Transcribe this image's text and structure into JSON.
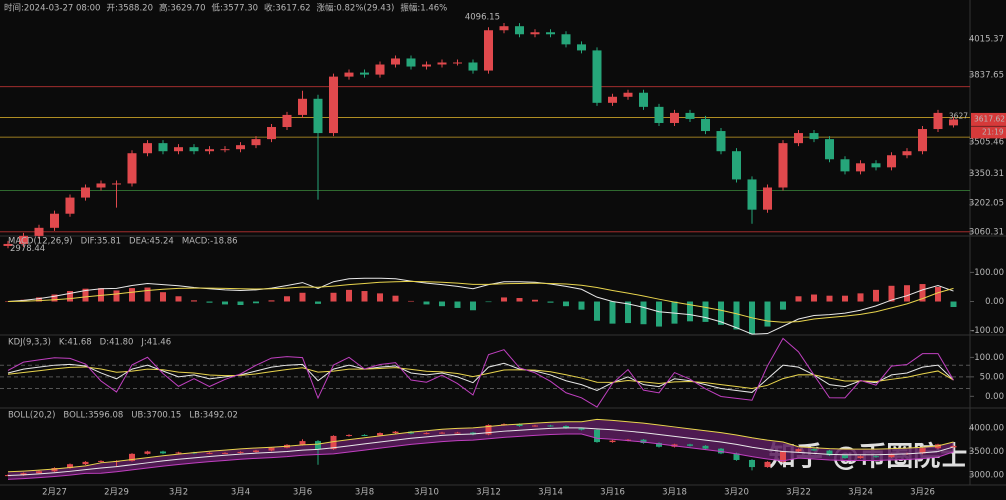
{
  "watermark": "知乎 @币圈院士",
  "chart_data": [
    {
      "type": "candlestick",
      "header": [
        "时间:2024-03-27 08:00",
        "开:3588.20",
        "高:3629.70",
        "低:3577.30",
        "收:3617.62",
        "涨幅:0.82%(29.43)",
        "振幅:1.46%"
      ],
      "categories": [
        null,
        null,
        null,
        "2月27",
        null,
        null,
        null,
        "2月29",
        null,
        null,
        null,
        "3月2",
        null,
        null,
        null,
        "3月4",
        null,
        null,
        null,
        "3月6",
        null,
        null,
        null,
        "3月8",
        null,
        null,
        null,
        "3月10",
        null,
        null,
        null,
        "3月12",
        null,
        null,
        null,
        "3月14",
        null,
        null,
        null,
        "3月16",
        null,
        null,
        null,
        "3月18",
        null,
        null,
        null,
        "3月20",
        null,
        null,
        null,
        "3月22",
        null,
        null,
        null,
        "3月24",
        null,
        null,
        null,
        "3月26",
        null,
        null
      ],
      "open": [
        2990,
        3000,
        3040,
        3080,
        3150,
        3230,
        3280,
        3300,
        3300,
        3450,
        3500,
        3460,
        3480,
        3460,
        3470,
        3470,
        3490,
        3520,
        3580,
        3640,
        3720,
        3550,
        3830,
        3850,
        3840,
        3890,
        3920,
        3880,
        3890,
        3900,
        3900,
        3860,
        4060,
        4080,
        4040,
        4050,
        4040,
        3990,
        3960,
        3700,
        3730,
        3750,
        3680,
        3600,
        3650,
        3620,
        3560,
        3460,
        3320,
        3170,
        3280,
        3500,
        3550,
        3520,
        3420,
        3360,
        3400,
        3380,
        3440,
        3460,
        3570,
        3588.2
      ],
      "high": [
        3015,
        3055,
        3095,
        3165,
        3245,
        3295,
        3315,
        3315,
        3465,
        3515,
        3515,
        3495,
        3495,
        3485,
        3485,
        3505,
        3535,
        3595,
        3655,
        3760,
        3740,
        3845,
        3865,
        3865,
        3905,
        3935,
        3935,
        3905,
        3915,
        3915,
        3915,
        4075,
        4096.15,
        4095,
        4065,
        4065,
        4055,
        4005,
        3975,
        3745,
        3765,
        3765,
        3695,
        3665,
        3665,
        3635,
        3575,
        3475,
        3335,
        3295,
        3515,
        3565,
        3565,
        3535,
        3435,
        3415,
        3415,
        3455,
        3475,
        3585,
        3665,
        3629.7
      ],
      "low": [
        2978.44,
        2985,
        3025,
        3065,
        3135,
        3215,
        3265,
        3180,
        3285,
        3435,
        3445,
        3445,
        3445,
        3445,
        3455,
        3455,
        3475,
        3505,
        3565,
        3625,
        3220,
        3535,
        3815,
        3825,
        3825,
        3875,
        3865,
        3865,
        3875,
        3885,
        3845,
        3845,
        4045,
        4025,
        4025,
        4025,
        3975,
        3945,
        3685,
        3685,
        3715,
        3665,
        3585,
        3585,
        3605,
        3545,
        3445,
        3305,
        3100,
        3155,
        3265,
        3485,
        3505,
        3405,
        3345,
        3345,
        3365,
        3365,
        3425,
        3445,
        3555,
        3577.3
      ],
      "close": [
        3000,
        3040,
        3080,
        3150,
        3230,
        3280,
        3300,
        3300,
        3450,
        3500,
        3460,
        3480,
        3460,
        3470,
        3470,
        3490,
        3520,
        3580,
        3640,
        3720,
        3550,
        3830,
        3850,
        3840,
        3890,
        3920,
        3880,
        3890,
        3900,
        3900,
        3860,
        4060,
        4080,
        4040,
        4050,
        4040,
        3990,
        3960,
        3700,
        3730,
        3750,
        3680,
        3600,
        3650,
        3620,
        3560,
        3460,
        3320,
        3170,
        3280,
        3500,
        3550,
        3520,
        3420,
        3360,
        3400,
        3380,
        3440,
        3460,
        3570,
        3650,
        3617.62
      ],
      "up_color": "#e0494d",
      "down_color": "#26a67a",
      "ylim": [
        2970,
        4210
      ],
      "yticks": [
        4015.37,
        3837.65,
        3505.46,
        3350.31,
        3202.05,
        3060.31
      ],
      "levels": [
        {
          "value": 3780,
          "color": "#b83232"
        },
        {
          "value": 3627,
          "color": "#c9a227"
        },
        {
          "value": 3530,
          "color": "#c9a227"
        },
        {
          "value": 3265,
          "color": "#3d8a3d"
        },
        {
          "value": 3060.31,
          "color": "#b83232"
        }
      ],
      "countdown": "21:19"
    },
    {
      "type": "macd",
      "legend": [
        {
          "text": "MACD(12,26,9)",
          "color": "#9a9a9a"
        },
        {
          "text": "DIF:35.81",
          "color": "#e8e8e8"
        },
        {
          "text": "DEA:45.24",
          "color": "#e8d44d"
        },
        {
          "text": "MACD:-18.86",
          "color": "#26a67a"
        }
      ],
      "histogram": [
        0,
        6,
        14,
        24,
        36,
        44,
        46,
        38,
        46,
        48,
        32,
        18,
        4,
        -4,
        -10,
        -12,
        -6,
        4,
        18,
        30,
        -8,
        30,
        40,
        36,
        28,
        20,
        2,
        -10,
        -16,
        -22,
        -30,
        -2,
        14,
        12,
        6,
        -4,
        -16,
        -28,
        -66,
        -76,
        -74,
        -78,
        -86,
        -76,
        -68,
        -70,
        -80,
        -96,
        -112,
        -86,
        -28,
        18,
        24,
        20,
        20,
        28,
        40,
        54,
        56,
        60,
        50,
        -18.86
      ],
      "up_color": "#e0494d",
      "down_color": "#26a67a",
      "series": [
        {
          "color": "#e8e8e8",
          "values": [
            0,
            4,
            10,
            18,
            28,
            38,
            44,
            45,
            55,
            62,
            58,
            54,
            48,
            44,
            40,
            38,
            40,
            46,
            55,
            65,
            45,
            68,
            78,
            80,
            80,
            78,
            70,
            63,
            58,
            52,
            44,
            58,
            68,
            68,
            66,
            60,
            52,
            42,
            15,
            0,
            -8,
            -20,
            -35,
            -40,
            -45,
            -55,
            -70,
            -90,
            -112,
            -110,
            -85,
            -60,
            -48,
            -45,
            -40,
            -30,
            -15,
            5,
            20,
            40,
            55,
            35.81
          ]
        },
        {
          "color": "#e8d44d",
          "values": [
            0,
            1,
            3,
            6,
            10,
            16,
            21,
            26,
            32,
            38,
            42,
            45,
            46,
            46,
            45,
            44,
            43,
            44,
            46,
            50,
            49,
            53,
            58,
            62,
            66,
            68,
            69,
            68,
            66,
            63,
            59,
            59,
            61,
            62,
            63,
            62,
            60,
            56,
            48,
            38,
            29,
            19,
            8,
            -2,
            -11,
            -20,
            -30,
            -42,
            -56,
            -67,
            -71,
            -69,
            -60,
            -55,
            -50,
            -44,
            -35,
            -22,
            -8,
            10,
            30,
            45.24
          ]
        }
      ],
      "ylim": [
        -115,
        225
      ],
      "yticks": [
        {
          "value": 100,
          "label": "100.00"
        },
        {
          "value": 0,
          "label": "0.00"
        },
        {
          "value": -100,
          "label": "-100.00"
        }
      ]
    },
    {
      "type": "kdj",
      "legend": [
        {
          "text": "KDJ(9,3,3)",
          "color": "#9a9a9a"
        },
        {
          "text": "K:41.68",
          "color": "#e8e8e8"
        },
        {
          "text": "D:41.80",
          "color": "#e8d44d"
        },
        {
          "text": "J:41.46",
          "color": "#c040c0"
        }
      ],
      "series": [
        {
          "color": "#e8e8e8",
          "values": [
            60,
            70,
            75,
            80,
            82,
            78,
            60,
            45,
            70,
            80,
            65,
            50,
            55,
            45,
            50,
            55,
            65,
            75,
            80,
            82,
            40,
            70,
            80,
            70,
            75,
            78,
            60,
            55,
            60,
            50,
            35,
            75,
            85,
            70,
            65,
            55,
            40,
            30,
            15,
            35,
            50,
            30,
            25,
            45,
            40,
            30,
            20,
            15,
            10,
            45,
            80,
            75,
            55,
            30,
            25,
            40,
            35,
            55,
            60,
            75,
            80,
            41.68
          ]
        },
        {
          "color": "#e8d44d",
          "values": [
            56.7,
            61.1,
            65.7,
            70.5,
            74.3,
            75.5,
            70.3,
            61.9,
            64.6,
            69.8,
            68.2,
            62.2,
            59.8,
            54.9,
            53.3,
            53.8,
            57.6,
            63.4,
            69,
            73.3,
            62.2,
            64.8,
            69.9,
            69.9,
            71.6,
            73.7,
            69.1,
            64.4,
            62.9,
            58.6,
            50.8,
            58.9,
            67.6,
            68.4,
            67.3,
            63.2,
            55.4,
            46.9,
            36.3,
            35.9,
            40.6,
            37.1,
            33,
            37,
            38,
            35.3,
            30.2,
            25.1,
            20,
            28.3,
            45.6,
            55.4,
            55.2,
            46.8,
            39.5,
            39.6,
            38.1,
            43.7,
            49.1,
            57.7,
            65.2,
            41.8
          ]
        },
        {
          "color": "#c040c0",
          "values": [
            66.6,
            87.8,
            93.6,
            99,
            97.4,
            83,
            39.4,
            11.2,
            80.8,
            100.4,
            58.6,
            25.6,
            45.4,
            25.2,
            43.4,
            57.4,
            79.8,
            98.2,
            102,
            99.4,
            -4.4,
            80.4,
            100.2,
            70.2,
            81.8,
            86.6,
            41.8,
            36.2,
            54.2,
            32.8,
            3.4,
            107.2,
            119.8,
            73.2,
            60.4,
            38.6,
            9.2,
            -3.8,
            -27.6,
            33.2,
            68.8,
            15.8,
            9,
            61,
            44,
            19.4,
            -0.4,
            -5.2,
            -10,
            78.4,
            148.8,
            114.2,
            54.6,
            -3.6,
            -4,
            40.8,
            28.8,
            77.6,
            81.8,
            109.6,
            109.6,
            41.46
          ]
        }
      ],
      "guides": [
        80,
        50,
        20
      ],
      "ylim": [
        -30,
        155
      ],
      "yticks": [
        {
          "value": 100,
          "label": "100.00"
        },
        {
          "value": 50,
          "label": "50.00"
        },
        {
          "value": 0,
          "label": "0.00"
        }
      ]
    },
    {
      "type": "boll",
      "legend": [
        {
          "text": "BOLL(20,2)",
          "color": "#9a9a9a"
        },
        {
          "text": "BOLL:3596.08",
          "color": "#e8e8e8"
        },
        {
          "text": "UB:3700.15",
          "color": "#e8d44d"
        },
        {
          "text": "LB:3492.02",
          "color": "#c040c0"
        }
      ],
      "band_color": "#5a1d5e",
      "series": [
        {
          "color": "#e8e8e8",
          "values": [
            2990,
            3005,
            3025,
            3050,
            3080,
            3115,
            3150,
            3180,
            3220,
            3260,
            3300,
            3335,
            3365,
            3395,
            3420,
            3445,
            3465,
            3480,
            3500,
            3530,
            3545,
            3580,
            3620,
            3660,
            3700,
            3740,
            3780,
            3810,
            3840,
            3860,
            3870,
            3900,
            3930,
            3950,
            3970,
            3990,
            4000,
            4000,
            3980,
            3960,
            3930,
            3900,
            3860,
            3820,
            3780,
            3740,
            3700,
            3650,
            3590,
            3540,
            3500,
            3480,
            3460,
            3440,
            3430,
            3430,
            3430,
            3440,
            3450,
            3470,
            3500,
            3596.08
          ]
        },
        {
          "color": "#e8d44d",
          "values": [
            3070,
            3085,
            3105,
            3130,
            3160,
            3195,
            3260,
            3290,
            3330,
            3370,
            3410,
            3445,
            3475,
            3505,
            3530,
            3555,
            3575,
            3590,
            3610,
            3640,
            3655,
            3710,
            3750,
            3790,
            3830,
            3870,
            3910,
            3940,
            3970,
            3990,
            4000,
            4030,
            4060,
            4080,
            4100,
            4120,
            4130,
            4130,
            4180,
            4160,
            4130,
            4100,
            4060,
            4020,
            3980,
            3940,
            3900,
            3850,
            3790,
            3740,
            3700,
            3600,
            3580,
            3560,
            3550,
            3550,
            3550,
            3560,
            3570,
            3590,
            3620,
            3700.15
          ]
        },
        {
          "color": "#c040c0",
          "values": [
            2910,
            2925,
            2945,
            2970,
            3000,
            3035,
            3040,
            3070,
            3110,
            3150,
            3190,
            3225,
            3255,
            3285,
            3310,
            3335,
            3355,
            3370,
            3390,
            3420,
            3435,
            3450,
            3490,
            3530,
            3570,
            3610,
            3650,
            3680,
            3710,
            3730,
            3740,
            3770,
            3800,
            3820,
            3840,
            3860,
            3870,
            3870,
            3780,
            3760,
            3730,
            3700,
            3660,
            3620,
            3580,
            3540,
            3500,
            3450,
            3390,
            3340,
            3300,
            3360,
            3340,
            3320,
            3310,
            3310,
            3310,
            3320,
            3330,
            3350,
            3380,
            3492.02
          ]
        }
      ],
      "ylim": [
        2790,
        4400
      ],
      "yticks": [
        {
          "value": 4000,
          "label": "4000.00"
        },
        {
          "value": 3500,
          "label": "3500.00"
        },
        {
          "value": 3000,
          "label": "3000.00"
        }
      ]
    }
  ]
}
